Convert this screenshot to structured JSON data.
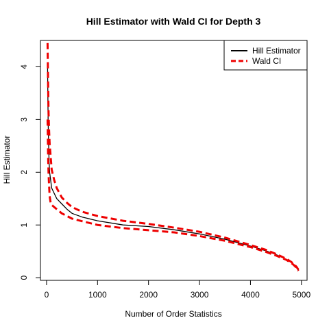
{
  "chart_data": {
    "type": "line",
    "title": "Hill Estimator with Wald CI for Depth 3",
    "xlabel": "Number of Order Statistics",
    "ylabel": "Hill Estimator",
    "xlim": [
      -120,
      5110
    ],
    "ylim": [
      -0.05,
      4.5
    ],
    "xticks": [
      0,
      1000,
      2000,
      3000,
      4000,
      5000
    ],
    "yticks": [
      0,
      1,
      2,
      3,
      4
    ],
    "grid": false,
    "legend_position": "top-right",
    "legend": [
      {
        "label": "Hill Estimator",
        "color": "#000000",
        "style": "solid"
      },
      {
        "label": "Wald CI",
        "color": "#ee0000",
        "style": "dashed"
      }
    ],
    "series": [
      {
        "name": "Hill Estimator",
        "color": "#000000",
        "style": "solid",
        "x": [
          20,
          30,
          40,
          50,
          60,
          80,
          100,
          150,
          200,
          300,
          400,
          500,
          700,
          1000,
          1500,
          2000,
          2500,
          3000,
          3500,
          4000,
          4300,
          4500,
          4700,
          4800,
          4850,
          4900,
          4940
        ],
        "y": [
          4.0,
          3.0,
          2.55,
          2.2,
          2.0,
          1.85,
          1.7,
          1.6,
          1.5,
          1.4,
          1.3,
          1.22,
          1.15,
          1.08,
          1.0,
          0.97,
          0.91,
          0.83,
          0.73,
          0.6,
          0.51,
          0.44,
          0.35,
          0.29,
          0.25,
          0.2,
          0.14
        ]
      },
      {
        "name": "Wald CI",
        "color": "#ee0000",
        "style": "dashed",
        "x": [
          20,
          30,
          40,
          50,
          60,
          80,
          100,
          150,
          200,
          300,
          400,
          500,
          700,
          1000,
          1500,
          2000,
          2500,
          3000,
          3500,
          4000,
          4300,
          4500,
          4700,
          4800,
          4850,
          4900,
          4940
        ],
        "y": [
          4.45,
          3.65,
          3.1,
          2.8,
          2.55,
          2.3,
          2.05,
          1.85,
          1.7,
          1.52,
          1.42,
          1.34,
          1.25,
          1.17,
          1.08,
          1.02,
          0.95,
          0.87,
          0.76,
          0.62,
          0.53,
          0.45,
          0.36,
          0.3,
          0.26,
          0.21,
          0.15
        ]
      },
      {
        "color": "#ee0000",
        "style": "dashed",
        "x": [
          20,
          30,
          40,
          50,
          60,
          80,
          100,
          150,
          200,
          300,
          400,
          500,
          700,
          1000,
          1500,
          2000,
          2500,
          3000,
          3500,
          4000,
          4300,
          4500,
          4700,
          4800,
          4850,
          4900,
          4940
        ],
        "y": [
          3.0,
          2.3,
          1.95,
          1.75,
          1.55,
          1.42,
          1.38,
          1.34,
          1.3,
          1.22,
          1.17,
          1.12,
          1.07,
          1.0,
          0.94,
          0.9,
          0.86,
          0.79,
          0.7,
          0.58,
          0.49,
          0.42,
          0.34,
          0.28,
          0.24,
          0.19,
          0.13
        ]
      }
    ]
  }
}
